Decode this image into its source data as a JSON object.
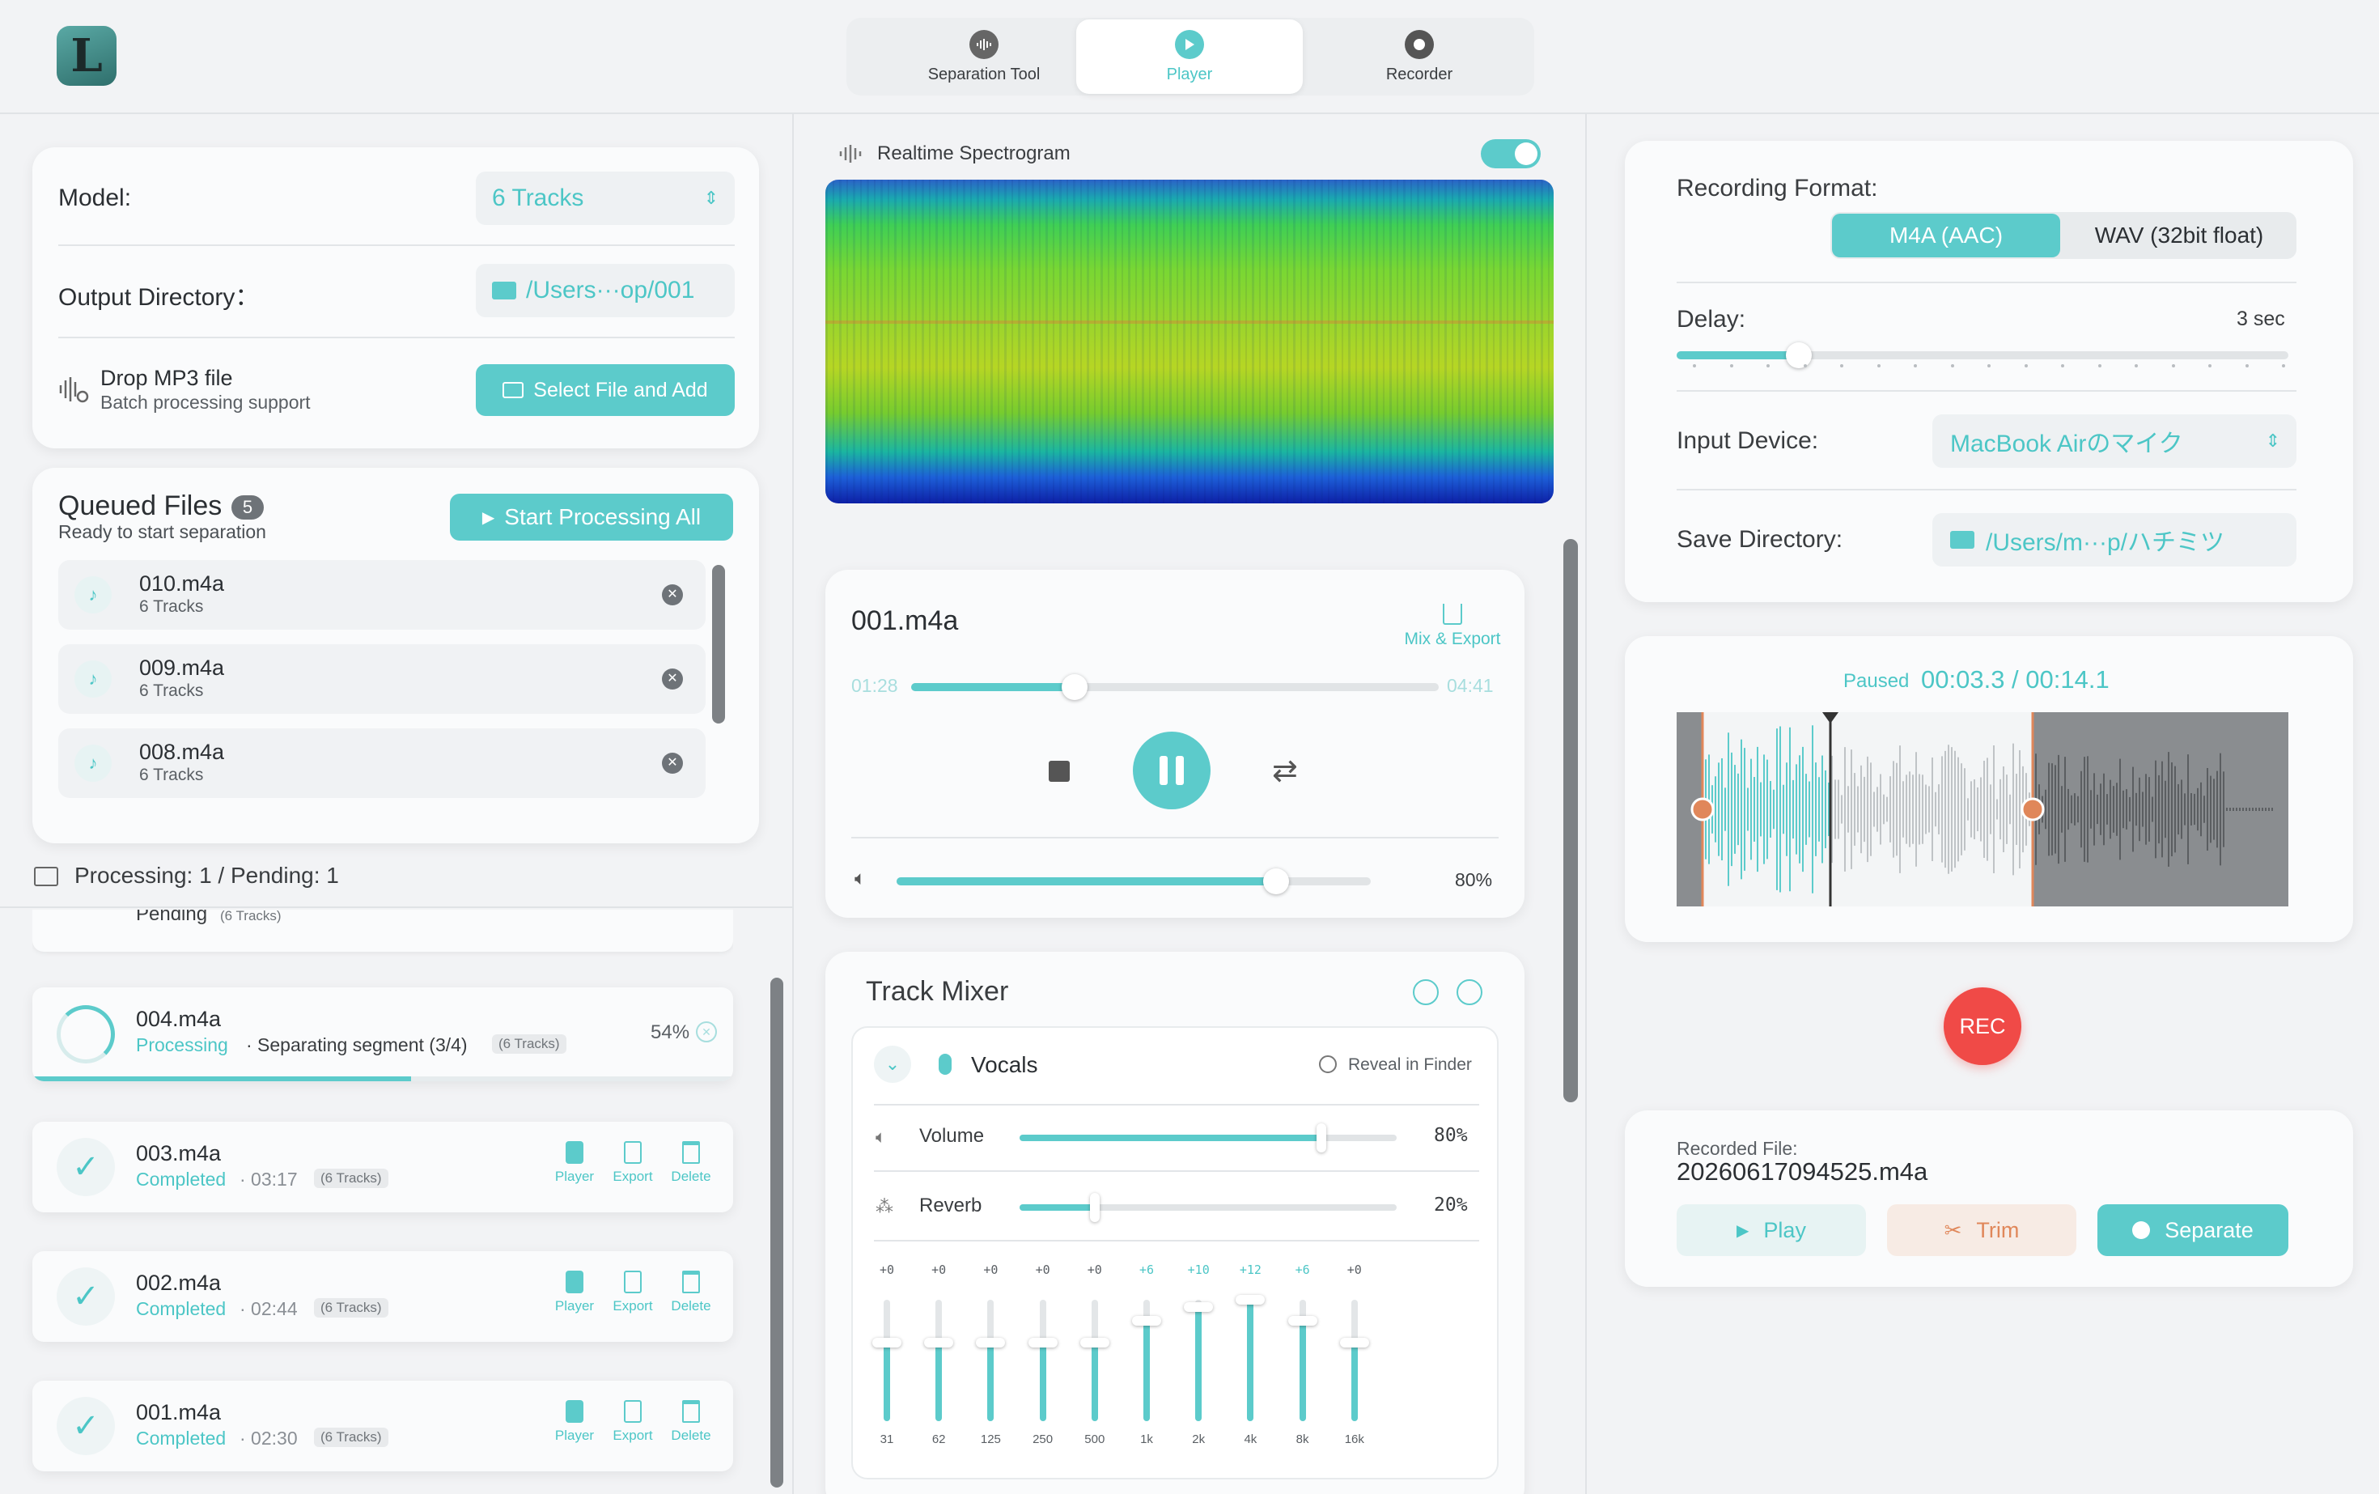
{
  "app": {
    "logo_letter": "L"
  },
  "tabs": [
    {
      "label": "Separation Tool",
      "icon": "waveform-icon",
      "active": false
    },
    {
      "label": "Player",
      "icon": "play-circle-icon",
      "active": true
    },
    {
      "label": "Recorder",
      "icon": "record-icon",
      "active": false
    }
  ],
  "separation": {
    "model_label": "Model:",
    "model_value": "6 Tracks",
    "output_label": "Output Directory：",
    "output_value": "/Users···op/001",
    "drop_title": "Drop MP3 file",
    "drop_sub": "Batch processing support",
    "select_button": "Select File and Add"
  },
  "queue": {
    "title": "Queued Files",
    "count": "5",
    "subtitle": "Ready to start separation",
    "start_button": "Start Processing All",
    "items": [
      {
        "name": "010.m4a",
        "tracks": "6 Tracks"
      },
      {
        "name": "009.m4a",
        "tracks": "6 Tracks"
      },
      {
        "name": "008.m4a",
        "tracks": "6 Tracks"
      }
    ],
    "status": "Processing: 1 / Pending: 1"
  },
  "jobs": {
    "pending": {
      "status": "Pending",
      "tracks": "(6 Tracks)"
    },
    "processing": {
      "name": "004.m4a",
      "status": "Processing",
      "detail": "· Separating segment (3/4)",
      "tracks": "(6 Tracks)",
      "percent": "54%",
      "progress": 0.54
    },
    "completed": [
      {
        "name": "003.m4a",
        "status": "Completed",
        "duration": "· 03:17",
        "tracks": "(6 Tracks)"
      },
      {
        "name": "002.m4a",
        "status": "Completed",
        "duration": "· 02:44",
        "tracks": "(6 Tracks)"
      },
      {
        "name": "001.m4a",
        "status": "Completed",
        "duration": "· 02:30",
        "tracks": "(6 Tracks)"
      }
    ],
    "actions": {
      "player": "Player",
      "export": "Export",
      "delete": "Delete"
    }
  },
  "player": {
    "spectrogram_label": "Realtime Spectrogram",
    "spectrogram_enabled": true,
    "file": "001.m4a",
    "mix_export": "Mix & Export",
    "elapsed": "01:28",
    "total": "04:41",
    "progress": 0.31,
    "volume": 0.8,
    "volume_label": "80%"
  },
  "mixer": {
    "title": "Track Mixer",
    "track": "Vocals",
    "reveal": "Reveal in Finder",
    "volume_label": "Volume",
    "volume_value": "80%",
    "volume": 0.8,
    "reverb_label": "Reverb",
    "reverb_value": "20%",
    "reverb": 0.2,
    "eq": [
      {
        "band": "31",
        "gain": "+0",
        "value": 0
      },
      {
        "band": "62",
        "gain": "+0",
        "value": 0
      },
      {
        "band": "125",
        "gain": "+0",
        "value": 0
      },
      {
        "band": "250",
        "gain": "+0",
        "value": 0
      },
      {
        "band": "500",
        "gain": "+0",
        "value": 0
      },
      {
        "band": "1k",
        "gain": "+6",
        "value": 6
      },
      {
        "band": "2k",
        "gain": "+10",
        "value": 10
      },
      {
        "band": "4k",
        "gain": "+12",
        "value": 12
      },
      {
        "band": "8k",
        "gain": "+6",
        "value": 6
      },
      {
        "band": "16k",
        "gain": "+0",
        "value": 0
      }
    ]
  },
  "recorder": {
    "format_label": "Recording Format:",
    "formats": [
      "M4A (AAC)",
      "WAV (32bit float)"
    ],
    "delay_label": "Delay:",
    "delay_value": "3 sec",
    "delay": 0.2,
    "input_label": "Input Device:",
    "input_value": "MacBook Airのマイク",
    "save_label": "Save Directory:",
    "save_value": "/Users/m···p/ハチミツ",
    "paused_label": "Paused",
    "time": "00:03.3 / 00:14.1",
    "rec_button": "REC",
    "recorded_label": "Recorded File:",
    "recorded_file": "20260617094525.m4a",
    "play_button": "Play",
    "trim_button": "Trim",
    "separate_button": "Separate"
  },
  "colors": {
    "accent": "#5ccbcb",
    "rec": "#f04a47",
    "trim_bg": "#f7ebe4",
    "trim": "#e0875a"
  }
}
